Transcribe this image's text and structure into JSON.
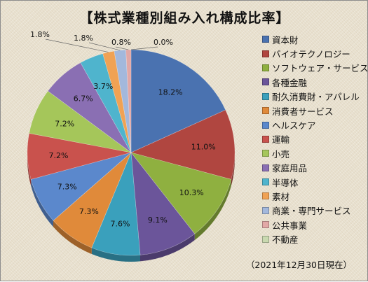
{
  "chart_data": {
    "type": "pie",
    "title": "【株式業種別組み入れ構成比率】",
    "categories": [
      "資本財",
      "バイオテクノロジー",
      "ソフトウェア・サービス",
      "各種金融",
      "耐久消費財・アパレル",
      "消費者サービス",
      "ヘルスケア",
      "運輸",
      "小売",
      "家庭用品",
      "半導体",
      "素材",
      "商業・専門サービス",
      "公共事業",
      "不動産"
    ],
    "values": [
      18.2,
      11.0,
      10.3,
      9.1,
      7.6,
      7.3,
      7.3,
      7.2,
      7.2,
      6.7,
      3.7,
      1.8,
      1.8,
      0.8,
      0.0
    ],
    "labels": [
      "18.2%",
      "11.0%",
      "10.3%",
      "9.1%",
      "7.6%",
      "7.3%",
      "7.3%",
      "7.2%",
      "7.2%",
      "6.7%",
      "3.7%",
      "1.8%",
      "1.8%",
      "0.8%",
      "0.0%"
    ],
    "colors": [
      "#4a72b0",
      "#b04640",
      "#8fb040",
      "#6b559a",
      "#3aa0bc",
      "#e08a3a",
      "#5b88cc",
      "#c9524d",
      "#a5c65a",
      "#8a6fb3",
      "#4fb4cd",
      "#f0a254",
      "#a3b8dc",
      "#e2a8a6",
      "#c9d9b0"
    ],
    "legend_position": "right",
    "note": "（2021年12月30日現在）"
  }
}
